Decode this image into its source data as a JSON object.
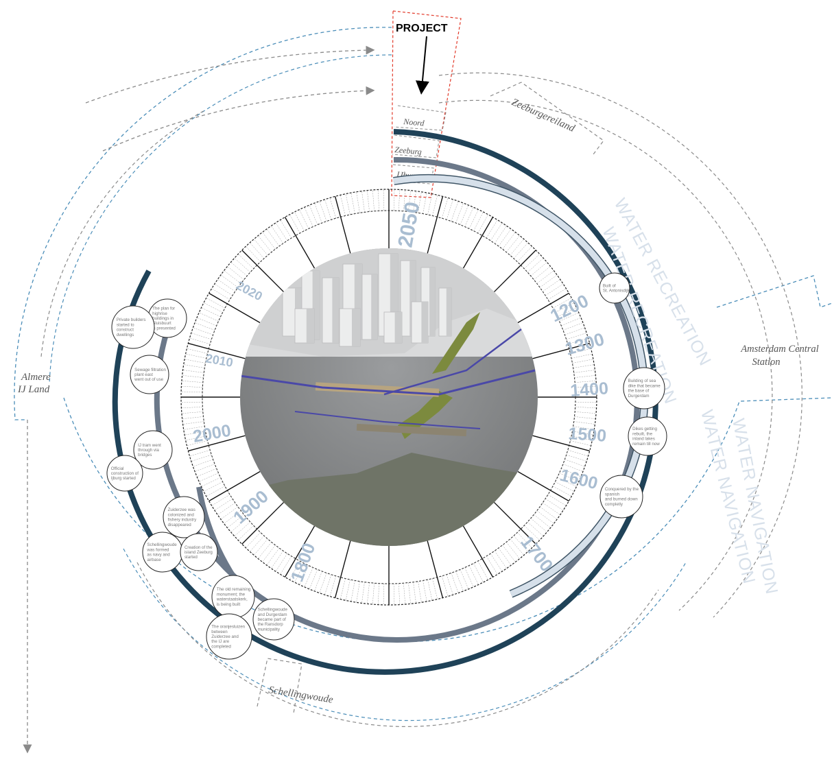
{
  "header": {
    "project_label": "PROJECT"
  },
  "districts": {
    "noord": "Noord",
    "zeeburg": "Zeeburg",
    "ijburg": "IJburg"
  },
  "places": {
    "zeeburgereiland": "Zeeburgereiland",
    "amsterdam_central": [
      "Amsterdam Central",
      "Station"
    ],
    "almere": [
      "Almere",
      "IJ Land"
    ],
    "schellingwoude": "Schellingwoude"
  },
  "bands": {
    "water_recreation": "WATER RECREATION",
    "water_navigation": "WATER NAVIGATION"
  },
  "years": [
    "2050",
    "1200",
    "1300",
    "1400",
    "1500",
    "1600",
    "1700",
    "1800",
    "1900",
    "2000",
    "2010",
    "2020"
  ],
  "events": [
    [
      "Built of",
      "St. Antonisdijk"
    ],
    [
      "Building of sea",
      "dike that became",
      "the base of",
      "Durgerdam"
    ],
    [
      "Dikes getting",
      "rebuilt, the",
      "inland lakes",
      "remain till now"
    ],
    [
      "Conquered by the",
      "spanish",
      "and burned down",
      "completly"
    ],
    [
      "The plan for",
      "highrise",
      "buildings in",
      "Sluisbuurt",
      "is presented"
    ],
    [
      "Private builders",
      "started to",
      "construct",
      "dwellings"
    ],
    [
      "Sewage filtration",
      "plant east",
      "went out of use"
    ],
    [
      "IJ tram went",
      "through via",
      "bridges"
    ],
    [
      "Official",
      "construction of",
      "Ijburg started"
    ],
    [
      "Zuiderzee was",
      "colonized and",
      "fishery industry",
      "disappeared"
    ],
    [
      "Schellingwoude",
      "was formed",
      "as navy and",
      "airbase"
    ],
    [
      "Creation of the",
      "island Zeeburg",
      "started"
    ],
    [
      "The old remaining",
      "monument; the",
      "waterstaatskerk,",
      "is being built"
    ],
    [
      "Schellingwoude",
      "and Durgerdam",
      "became part of",
      "the Ransdorp",
      "municipality"
    ],
    [
      "The oranjesluizen",
      "between",
      "Zuiderzee and",
      "the IJ are",
      "completed"
    ]
  ],
  "colors": {
    "ring_dark": "#1f4258",
    "ring_mid": "#6b7889",
    "ring_light": "#d6e0ea",
    "ring_light_outline": "#3f5566",
    "dashed_blue": "#4a8db8",
    "dashed_gray": "#8a8a8a",
    "project_box": "#e23a2a",
    "year_text": "#a9bdd1",
    "band_text": "#d7e0ea",
    "water": "#838689",
    "canal": "#4a48a8",
    "greenery": "#7c8a3e"
  }
}
